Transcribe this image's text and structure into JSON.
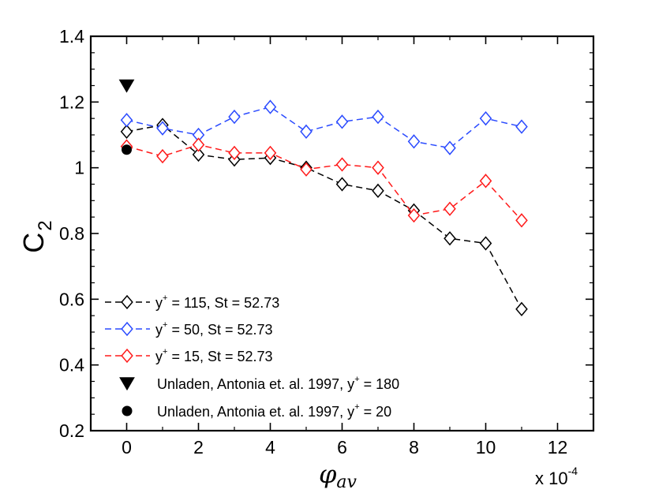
{
  "chart_data": {
    "type": "line",
    "title": "",
    "xlabel": "φ",
    "xlabel_subscript": "av",
    "ylabel": "C",
    "ylabel_subscript": "2",
    "x_multiplier": {
      "prefix": "x 10",
      "exponent": "-4"
    },
    "xlim": [
      -1,
      13
    ],
    "ylim": [
      0.2,
      1.4
    ],
    "xticks": [
      0,
      2,
      4,
      6,
      8,
      10,
      12
    ],
    "yticks": [
      0.2,
      0.4,
      0.6,
      0.8,
      1.0,
      1.2,
      1.4
    ],
    "xtick_labels": [
      "0",
      "2",
      "4",
      "6",
      "8",
      "10",
      "12"
    ],
    "ytick_labels": [
      "0.2",
      "0.4",
      "0.6",
      "0.8",
      "1",
      "1.2",
      "1.4"
    ],
    "grid": false,
    "legend_position": "bottom-left",
    "series": [
      {
        "name": "y+ = 115, St = 52.73",
        "legend_prefix": "y",
        "legend_sup": "+",
        "legend_suffix": " = 115, St = 52.73",
        "color": "#000000",
        "marker": "diamond",
        "linestyle": "dashed",
        "x": [
          0,
          1,
          2,
          3,
          4,
          5,
          6,
          7,
          8,
          9,
          10,
          11
        ],
        "values": [
          1.11,
          1.13,
          1.04,
          1.025,
          1.03,
          1.0,
          0.95,
          0.93,
          0.87,
          0.785,
          0.77,
          0.57
        ]
      },
      {
        "name": "y+ = 50, St = 52.73",
        "legend_prefix": "y",
        "legend_sup": "+",
        "legend_suffix": " = 50, St = 52.73",
        "color": "#2b4bff",
        "marker": "diamond",
        "linestyle": "dashed",
        "x": [
          0,
          1,
          2,
          3,
          4,
          5,
          6,
          7,
          8,
          9,
          10,
          11
        ],
        "values": [
          1.145,
          1.12,
          1.1,
          1.155,
          1.185,
          1.11,
          1.14,
          1.155,
          1.08,
          1.06,
          1.15,
          1.125
        ]
      },
      {
        "name": "y+ = 15,  St = 52.73",
        "legend_prefix": "y",
        "legend_sup": "+",
        "legend_suffix": " = 15,  St = 52.73",
        "color": "#ff1a1a",
        "marker": "diamond",
        "linestyle": "dashed",
        "x": [
          0,
          1,
          2,
          3,
          4,
          5,
          6,
          7,
          8,
          9,
          10,
          11
        ],
        "values": [
          1.065,
          1.035,
          1.07,
          1.045,
          1.045,
          0.995,
          1.01,
          1.0,
          0.855,
          0.875,
          0.96,
          0.84
        ]
      },
      {
        "name": "Unladen, Antonia et. al. 1997, y+ = 180",
        "legend_prefix": "Unladen, Antonia et. al. 1997, y",
        "legend_sup": "+",
        "legend_suffix": " = 180",
        "color": "#000000",
        "marker": "triangle-down",
        "linestyle": "none",
        "x": [
          0
        ],
        "values": [
          1.25
        ]
      },
      {
        "name": "Unladen, Antonia et. al. 1997, y+ = 20",
        "legend_prefix": "Unladen, Antonia et. al. 1997, y",
        "legend_sup": "+",
        "legend_suffix": " = 20",
        "color": "#000000",
        "marker": "circle",
        "linestyle": "none",
        "x": [
          0
        ],
        "values": [
          1.055
        ]
      }
    ]
  }
}
